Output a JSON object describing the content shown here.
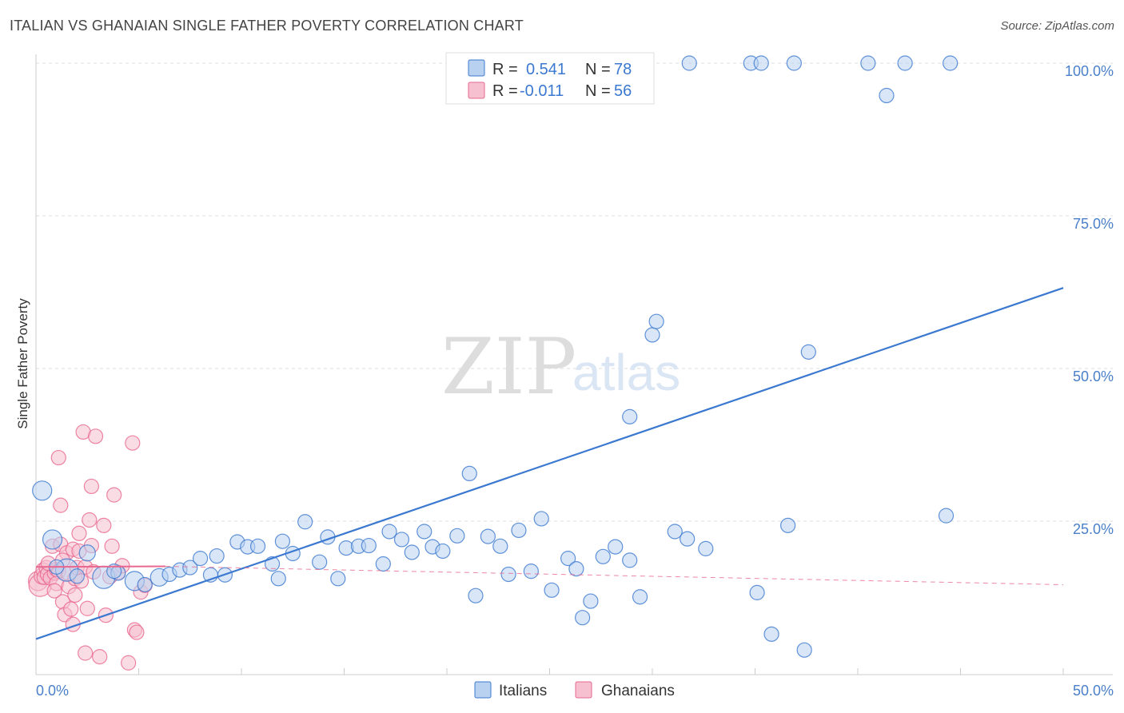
{
  "header": {
    "title": "ITALIAN VS GHANAIAN SINGLE FATHER POVERTY CORRELATION CHART",
    "source": "Source: ZipAtlas.com"
  },
  "colors": {
    "italians": "#3b78d0",
    "italians_fill": "#b8d1f0",
    "ghanaians": "#e8688f",
    "ghanaians_fill": "#f6c0d0",
    "grid": "#dddddd",
    "tick_label": "#4a7fc9"
  },
  "legend": {
    "r_label": "R =",
    "n_label": "N =",
    "italians_r": "0.541",
    "italians_n": "78",
    "ghanaians_r": "-0.011",
    "ghanaians_n": "56"
  },
  "watermark": {
    "zip": "ZIP",
    "atlas": "atlas"
  },
  "chart_data": {
    "type": "scatter",
    "title": "ITALIAN VS GHANAIAN SINGLE FATHER POVERTY CORRELATION CHART",
    "xlabel": "",
    "ylabel": "Single Father Poverty",
    "xlim": [
      0,
      50
    ],
    "ylim": [
      0,
      105
    ],
    "x_tick_labels": [
      {
        "value": 0,
        "label": "0.0%"
      },
      {
        "value": 50,
        "label": "50.0%"
      }
    ],
    "y_tick_labels": [
      {
        "value": 100,
        "label": "100.0%"
      },
      {
        "value": 75,
        "label": "75.0%"
      },
      {
        "value": 50,
        "label": "50.0%"
      },
      {
        "value": 25,
        "label": "25.0%"
      }
    ],
    "legend_position": "bottom-center",
    "series": [
      {
        "name": "Italians",
        "color": "#3b78d0",
        "trend": {
          "x": [
            0,
            50
          ],
          "y": [
            5.7,
            63.2
          ],
          "style": "solid"
        },
        "points": [
          [
            0.3,
            30.0,
            12
          ],
          [
            0.8,
            22.0,
            12
          ],
          [
            1.5,
            17.0,
            14
          ],
          [
            2.5,
            19.8,
            10
          ],
          [
            3.3,
            15.8,
            14
          ],
          [
            4.8,
            15.2,
            12
          ],
          [
            5.3,
            14.6,
            9
          ],
          [
            6.0,
            15.8,
            11
          ],
          [
            6.5,
            16.3,
            9
          ],
          [
            7.0,
            17.0,
            9
          ],
          [
            7.5,
            17.4,
            9
          ],
          [
            8.0,
            18.9,
            9
          ],
          [
            8.5,
            16.2,
            9
          ],
          [
            8.8,
            19.3,
            9
          ],
          [
            9.2,
            16.2,
            9
          ],
          [
            9.8,
            21.6,
            9
          ],
          [
            10.3,
            20.8,
            9
          ],
          [
            10.8,
            20.9,
            9
          ],
          [
            11.5,
            18.0,
            9
          ],
          [
            11.8,
            15.6,
            9
          ],
          [
            12.0,
            21.7,
            9
          ],
          [
            12.5,
            19.7,
            9
          ],
          [
            13.1,
            24.9,
            9
          ],
          [
            13.8,
            18.3,
            9
          ],
          [
            14.2,
            22.4,
            9
          ],
          [
            14.7,
            15.6,
            9
          ],
          [
            15.1,
            20.6,
            9
          ],
          [
            15.7,
            20.9,
            9
          ],
          [
            16.2,
            21.0,
            9
          ],
          [
            16.9,
            18.0,
            9
          ],
          [
            17.2,
            23.3,
            9
          ],
          [
            17.8,
            22.0,
            9
          ],
          [
            18.3,
            19.9,
            9
          ],
          [
            18.9,
            23.3,
            9
          ],
          [
            19.3,
            20.8,
            9
          ],
          [
            19.8,
            20.1,
            9
          ],
          [
            20.5,
            22.6,
            9
          ],
          [
            21.1,
            32.8,
            9
          ],
          [
            21.4,
            12.8,
            9
          ],
          [
            22.0,
            22.5,
            9
          ],
          [
            22.6,
            20.9,
            9
          ],
          [
            23.0,
            16.3,
            9
          ],
          [
            23.5,
            23.5,
            9
          ],
          [
            24.1,
            16.8,
            9
          ],
          [
            24.6,
            25.4,
            9
          ],
          [
            25.1,
            13.7,
            9
          ],
          [
            25.9,
            18.9,
            9
          ],
          [
            26.3,
            17.2,
            9
          ],
          [
            26.6,
            9.2,
            9
          ],
          [
            27.0,
            11.9,
            9
          ],
          [
            27.6,
            19.2,
            9
          ],
          [
            28.2,
            20.8,
            9
          ],
          [
            28.9,
            42.1,
            9
          ],
          [
            28.9,
            18.6,
            9
          ],
          [
            29.4,
            12.6,
            9
          ],
          [
            30.0,
            55.5,
            9
          ],
          [
            30.2,
            57.7,
            9
          ],
          [
            31.1,
            23.3,
            9
          ],
          [
            31.7,
            22.1,
            9
          ],
          [
            32.6,
            20.5,
            9
          ],
          [
            35.1,
            13.3,
            9
          ],
          [
            35.8,
            6.5,
            9
          ],
          [
            36.6,
            24.3,
            9
          ],
          [
            37.4,
            3.9,
            9
          ],
          [
            37.6,
            52.7,
            9
          ],
          [
            44.3,
            25.9,
            9
          ],
          [
            31.8,
            100.0,
            9
          ],
          [
            34.8,
            100.0,
            9
          ],
          [
            35.3,
            100.0,
            9
          ],
          [
            36.9,
            100.0,
            9
          ],
          [
            40.5,
            100.0,
            9
          ],
          [
            42.3,
            100.0,
            9
          ],
          [
            44.5,
            100.0,
            9
          ],
          [
            41.4,
            94.7,
            9
          ],
          [
            1.0,
            17.5,
            9
          ],
          [
            4.0,
            16.5,
            9
          ],
          [
            2.0,
            16.0,
            9
          ],
          [
            3.8,
            16.8,
            9
          ]
        ]
      },
      {
        "name": "Ghanaians",
        "color": "#e8688f",
        "trend": {
          "x": [
            0,
            6.3,
            50
          ],
          "y": [
            17.5,
            17.6,
            14.6
          ],
          "solid_until": 6.3
        },
        "points": [
          [
            0.1,
            15.2,
            12
          ],
          [
            0.2,
            14.5,
            14
          ],
          [
            0.3,
            16.0,
            10
          ],
          [
            0.35,
            17.0,
            9
          ],
          [
            0.4,
            15.8,
            9
          ],
          [
            0.5,
            17.4,
            9
          ],
          [
            0.6,
            16.3,
            10
          ],
          [
            0.7,
            15.7,
            9
          ],
          [
            0.8,
            20.9,
            9
          ],
          [
            0.9,
            16.5,
            9
          ],
          [
            1.0,
            17.1,
            9
          ],
          [
            1.1,
            16.8,
            9
          ],
          [
            1.0,
            14.8,
            9
          ],
          [
            1.2,
            21.2,
            9
          ],
          [
            1.1,
            35.4,
            9
          ],
          [
            1.2,
            27.6,
            9
          ],
          [
            1.3,
            11.8,
            9
          ],
          [
            1.4,
            9.7,
            9
          ],
          [
            1.5,
            19.8,
            9
          ],
          [
            1.6,
            14.3,
            9
          ],
          [
            1.6,
            16.4,
            9
          ],
          [
            1.7,
            10.6,
            9
          ],
          [
            1.8,
            20.4,
            9
          ],
          [
            1.8,
            8.1,
            9
          ],
          [
            1.9,
            12.9,
            9
          ],
          [
            1.9,
            15.6,
            9
          ],
          [
            2.0,
            17.4,
            9
          ],
          [
            2.1,
            20.1,
            9
          ],
          [
            2.1,
            23.0,
            9
          ],
          [
            2.2,
            15.2,
            9
          ],
          [
            2.3,
            39.6,
            9
          ],
          [
            2.4,
            3.4,
            9
          ],
          [
            2.4,
            17.5,
            9
          ],
          [
            2.5,
            10.7,
            9
          ],
          [
            2.6,
            25.2,
            9
          ],
          [
            2.7,
            21.0,
            9
          ],
          [
            2.7,
            30.7,
            9
          ],
          [
            2.8,
            16.7,
            9
          ],
          [
            2.9,
            38.9,
            9
          ],
          [
            3.1,
            2.8,
            9
          ],
          [
            3.3,
            24.3,
            9
          ],
          [
            3.4,
            9.6,
            9
          ],
          [
            3.6,
            15.9,
            9
          ],
          [
            3.7,
            20.9,
            9
          ],
          [
            3.8,
            29.3,
            9
          ],
          [
            4.0,
            16.6,
            9
          ],
          [
            4.2,
            17.7,
            9
          ],
          [
            4.5,
            1.8,
            9
          ],
          [
            4.7,
            37.8,
            9
          ],
          [
            4.8,
            7.2,
            9
          ],
          [
            4.9,
            6.8,
            9
          ],
          [
            5.1,
            13.4,
            9
          ],
          [
            5.3,
            14.5,
            9
          ],
          [
            0.6,
            18.1,
            9
          ],
          [
            0.9,
            13.6,
            9
          ],
          [
            1.3,
            18.6,
            9
          ]
        ]
      }
    ]
  }
}
